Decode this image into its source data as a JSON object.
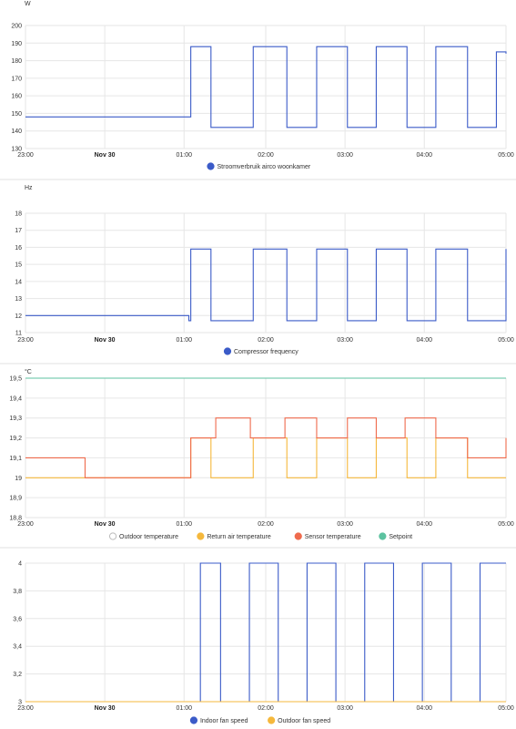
{
  "colors": {
    "blue": "#3b5bc8",
    "red": "#ef6b4d",
    "orange": "#f5b83c",
    "green": "#5cc2a0",
    "outdoor": "#bbbbbb",
    "grid": "#e6e6e6"
  },
  "chart_data": [
    {
      "type": "line",
      "unit": "W",
      "x_ticks": [
        "23:00",
        "Nov 30",
        "01:00",
        "02:00",
        "03:00",
        "04:00",
        "05:00"
      ],
      "y_ticks": [
        "130",
        "140",
        "150",
        "160",
        "170",
        "180",
        "190",
        "200"
      ],
      "ylim": [
        130,
        200
      ],
      "series": [
        {
          "name": "Stroomverbruik airco woonkamer",
          "color": "#3b5bc8",
          "x": [
            0.0,
            1.7,
            1.72,
            1.9,
            1.93,
            2.33,
            2.37,
            2.68,
            2.72,
            3.0,
            3.03,
            3.3,
            3.35,
            3.6,
            3.65,
            3.92,
            3.97,
            4.22,
            4.27,
            4.55,
            4.6,
            4.85,
            4.9,
            5.0
          ],
          "y": [
            148,
            148,
            188,
            188,
            142,
            142,
            188,
            188,
            142,
            142,
            188,
            188,
            142,
            142,
            188,
            188,
            142,
            142,
            188,
            188,
            142,
            142,
            185,
            184
          ]
        }
      ]
    },
    {
      "type": "line",
      "unit": "Hz",
      "x_ticks": [
        "23:00",
        "Nov 30",
        "01:00",
        "02:00",
        "03:00",
        "04:00",
        "05:00"
      ],
      "y_ticks": [
        "11",
        "12",
        "13",
        "14",
        "15",
        "16",
        "17",
        "18"
      ],
      "ylim": [
        11,
        18
      ],
      "series": [
        {
          "name": "Compressor frequency",
          "color": "#3b5bc8",
          "x": [
            0.0,
            1.7,
            1.72,
            1.9,
            1.93,
            2.33,
            2.37,
            2.68,
            2.72,
            3.0,
            3.03,
            3.3,
            3.35,
            3.6,
            3.65,
            3.92,
            3.97,
            4.22,
            4.27,
            4.55,
            4.6,
            5.0
          ],
          "y": [
            12,
            11.7,
            15.9,
            15.9,
            11.7,
            11.7,
            15.9,
            15.9,
            11.7,
            11.7,
            15.9,
            15.9,
            11.7,
            11.7,
            15.9,
            15.9,
            11.7,
            11.7,
            15.9,
            15.9,
            11.7,
            15.9
          ]
        }
      ]
    },
    {
      "type": "line",
      "unit": "°C",
      "x_ticks": [
        "23:00",
        "Nov 30",
        "01:00",
        "02:00",
        "03:00",
        "04:00",
        "05:00"
      ],
      "y_ticks": [
        "18,8",
        "18,9",
        "19",
        "19,1",
        "19,2",
        "19,3",
        "19,4",
        "19,5"
      ],
      "ylim": [
        18.8,
        19.5
      ],
      "series": [
        {
          "name": "Outdoor temperature",
          "color": "#bbbbbb",
          "x": [],
          "y": []
        },
        {
          "name": "Return air temperature",
          "color": "#f5b83c",
          "x": [
            0.0,
            1.7,
            1.72,
            1.9,
            1.93,
            2.33,
            2.37,
            2.68,
            2.72,
            3.0,
            3.03,
            3.3,
            3.35,
            3.6,
            3.65,
            3.92,
            3.97,
            4.22,
            4.27,
            4.55,
            4.6,
            5.0
          ],
          "y": [
            19.0,
            19.0,
            19.2,
            19.2,
            19.0,
            19.0,
            19.2,
            19.2,
            19.0,
            19.0,
            19.2,
            19.2,
            19.0,
            19.0,
            19.2,
            19.2,
            19.0,
            19.0,
            19.2,
            19.2,
            19.0,
            19.0
          ]
        },
        {
          "name": "Sensor temperature",
          "color": "#ef6b4d",
          "x": [
            0.0,
            0.6,
            0.62,
            1.7,
            1.72,
            1.95,
            1.98,
            2.3,
            2.34,
            2.65,
            2.7,
            3.0,
            3.03,
            3.3,
            3.35,
            3.6,
            3.65,
            3.9,
            3.95,
            4.22,
            4.27,
            4.55,
            4.6,
            5.0
          ],
          "y": [
            19.1,
            19.1,
            19.0,
            19.0,
            19.2,
            19.2,
            19.3,
            19.3,
            19.2,
            19.2,
            19.3,
            19.3,
            19.2,
            19.2,
            19.3,
            19.3,
            19.2,
            19.2,
            19.3,
            19.3,
            19.2,
            19.2,
            19.1,
            19.2
          ]
        },
        {
          "name": "Setpoint",
          "color": "#5cc2a0",
          "x": [
            0.0,
            5.0
          ],
          "y": [
            19.5,
            19.5
          ]
        }
      ]
    },
    {
      "type": "line",
      "x_ticks": [
        "23:00",
        "Nov 30",
        "01:00",
        "02:00",
        "03:00",
        "04:00",
        "05:00"
      ],
      "y_ticks": [
        "3",
        "3,2",
        "3,4",
        "3,6",
        "3,8",
        "4"
      ],
      "ylim": [
        3,
        4
      ],
      "series": [
        {
          "name": "Indoor fan speed",
          "color": "#3b5bc8",
          "x": [
            0.0,
            1.8,
            1.82,
            2.0,
            2.03,
            2.3,
            2.33,
            2.6,
            2.63,
            2.9,
            2.93,
            3.2,
            3.23,
            3.5,
            3.53,
            3.8,
            3.83,
            4.1,
            4.13,
            4.4,
            4.43,
            4.7,
            4.73,
            5.0
          ],
          "y": [
            3,
            3,
            4,
            4,
            3,
            3,
            4,
            4,
            3,
            3,
            4,
            4,
            3,
            3,
            4,
            4,
            3,
            3,
            4,
            4,
            3,
            3,
            4,
            4
          ]
        },
        {
          "name": "Outdoor fan speed",
          "color": "#f5b83c",
          "x": [
            0.0,
            5.0
          ],
          "y": [
            3,
            3
          ]
        }
      ]
    }
  ]
}
